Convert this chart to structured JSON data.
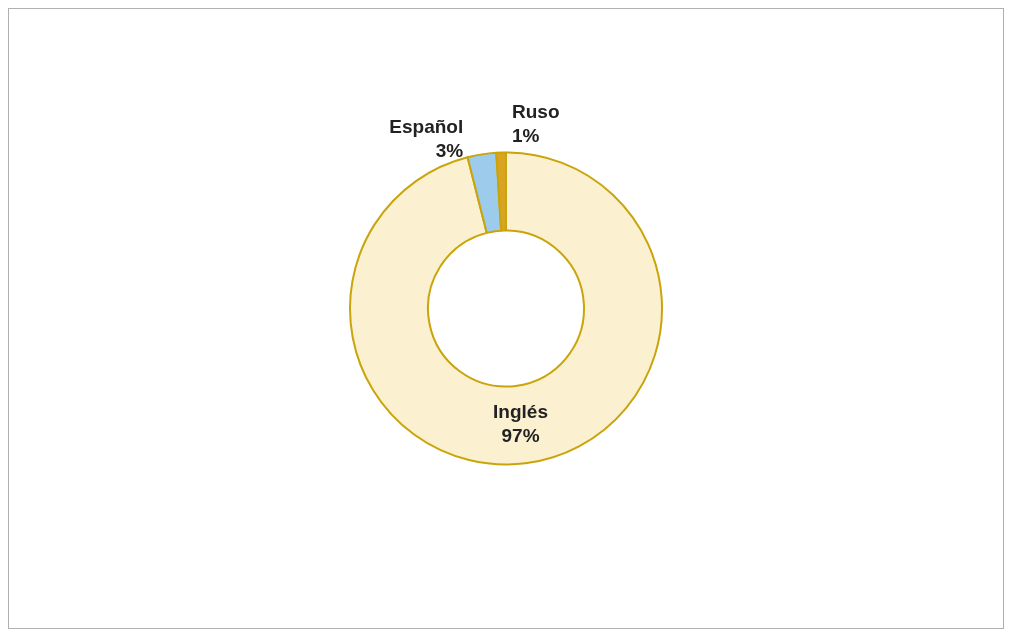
{
  "chart_data": {
    "type": "donut",
    "categories": [
      "Inglés",
      "Español",
      "Ruso"
    ],
    "values": [
      97,
      3,
      1
    ],
    "value_labels": [
      "97%",
      "3%",
      "1%"
    ],
    "colors": [
      "#fbf1d0",
      "#9ccbeb",
      "#d9a521"
    ],
    "legend": false
  }
}
